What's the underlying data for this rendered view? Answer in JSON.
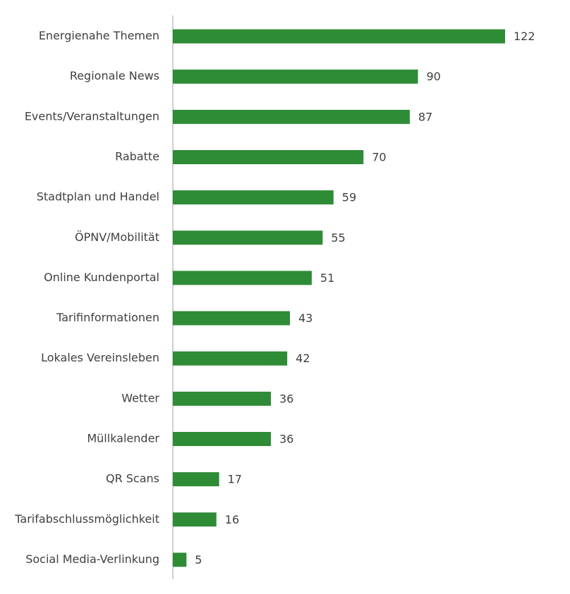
{
  "chart_data": {
    "type": "bar",
    "orientation": "horizontal",
    "categories": [
      "Energienahe Themen",
      "Regionale News",
      "Events/Veranstaltungen",
      "Rabatte",
      "Stadtplan und Handel",
      "ÖPNV/Mobilität",
      "Online Kundenportal",
      "Tarifinformationen",
      "Lokales Vereinsleben",
      "Wetter",
      "Müllkalender",
      "QR Scans",
      "Tarifabschlussmöglichkeit",
      "Social Media-Verlinkung"
    ],
    "values": [
      122,
      90,
      87,
      70,
      59,
      55,
      51,
      43,
      42,
      36,
      36,
      17,
      16,
      5
    ],
    "color": "#2e8b36"
  }
}
